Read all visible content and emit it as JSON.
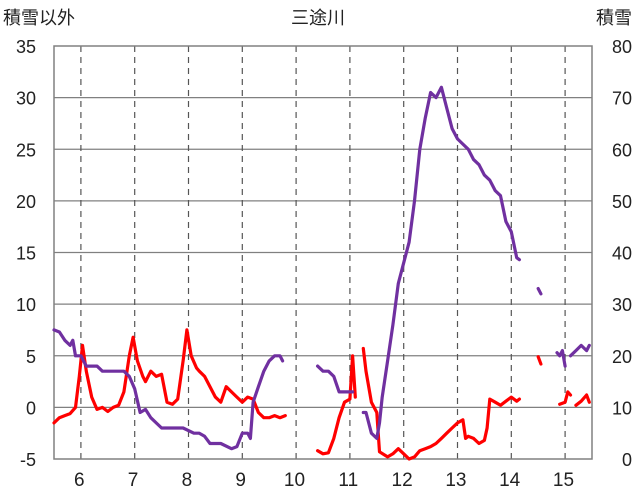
{
  "chart_data": {
    "type": "line",
    "title": "三途川",
    "ylabel_left": "積雪以外",
    "ylabel_right": "積雪",
    "ylim_left": [
      -5,
      35
    ],
    "ylim_right": [
      0,
      80
    ],
    "yticks_left": [
      "35",
      "30",
      "25",
      "20",
      "15",
      "10",
      "5",
      "0",
      "-5"
    ],
    "yticks_right": [
      "80",
      "70",
      "60",
      "50",
      "40",
      "30",
      "20",
      "10",
      "0"
    ],
    "x_categories": [
      "6",
      "7",
      "8",
      "9",
      "10",
      "11",
      "12",
      "13",
      "14",
      "15"
    ],
    "xlim": [
      5.5,
      15.5
    ],
    "gridlines": "dashed vertical at day boundaries; solid horizontal at 5-unit steps",
    "series": [
      {
        "axis": "left",
        "color": "#ff0000",
        "segments": [
          [
            [
              5.5,
              -1.5
            ],
            [
              5.6,
              -1.0
            ],
            [
              5.7,
              -0.8
            ],
            [
              5.8,
              -0.6
            ],
            [
              5.9,
              0.0
            ],
            [
              5.97,
              3.0
            ],
            [
              6.03,
              6.0
            ],
            [
              6.1,
              3.5
            ],
            [
              6.2,
              1.0
            ],
            [
              6.3,
              -0.2
            ],
            [
              6.4,
              0.0
            ],
            [
              6.5,
              -0.4
            ],
            [
              6.6,
              0.0
            ],
            [
              6.7,
              0.2
            ],
            [
              6.8,
              1.5
            ],
            [
              6.9,
              5.0
            ],
            [
              6.97,
              6.8
            ],
            [
              7.05,
              4.5
            ],
            [
              7.15,
              3.0
            ],
            [
              7.2,
              2.5
            ],
            [
              7.3,
              3.5
            ],
            [
              7.4,
              3.0
            ],
            [
              7.5,
              3.2
            ],
            [
              7.6,
              0.5
            ],
            [
              7.7,
              0.3
            ],
            [
              7.8,
              0.8
            ],
            [
              7.9,
              4.5
            ],
            [
              7.97,
              7.5
            ],
            [
              8.05,
              5.0
            ],
            [
              8.15,
              3.8
            ],
            [
              8.2,
              3.5
            ],
            [
              8.3,
              3.0
            ],
            [
              8.4,
              2.0
            ],
            [
              8.5,
              1.0
            ],
            [
              8.6,
              0.5
            ],
            [
              8.7,
              2.0
            ],
            [
              8.8,
              1.5
            ],
            [
              8.9,
              1.0
            ],
            [
              9.0,
              0.5
            ],
            [
              9.1,
              1.0
            ],
            [
              9.2,
              0.8
            ],
            [
              9.3,
              -0.5
            ],
            [
              9.4,
              -1.0
            ],
            [
              9.5,
              -1.0
            ],
            [
              9.6,
              -0.8
            ],
            [
              9.7,
              -1.0
            ],
            [
              9.8,
              -0.8
            ]
          ],
          [
            [
              10.4,
              -4.2
            ],
            [
              10.5,
              -4.5
            ],
            [
              10.6,
              -4.4
            ],
            [
              10.7,
              -3.0
            ],
            [
              10.8,
              -1.0
            ],
            [
              10.9,
              0.5
            ],
            [
              11.0,
              0.8
            ],
            [
              11.05,
              5.0
            ],
            [
              11.1,
              1.0
            ]
          ],
          [
            [
              11.25,
              5.7
            ],
            [
              11.3,
              3.5
            ],
            [
              11.4,
              0.5
            ],
            [
              11.5,
              -0.5
            ],
            [
              11.55,
              -4.3
            ],
            [
              11.7,
              -4.8
            ],
            [
              11.8,
              -4.5
            ],
            [
              11.9,
              -4.0
            ],
            [
              12.0,
              -4.5
            ],
            [
              12.1,
              -5.0
            ],
            [
              12.2,
              -4.8
            ],
            [
              12.3,
              -4.2
            ],
            [
              12.4,
              -4.0
            ],
            [
              12.5,
              -3.8
            ],
            [
              12.6,
              -3.5
            ],
            [
              12.7,
              -3.0
            ],
            [
              12.8,
              -2.5
            ],
            [
              12.9,
              -2.0
            ],
            [
              13.0,
              -1.5
            ],
            [
              13.1,
              -1.2
            ],
            [
              13.15,
              -3.0
            ],
            [
              13.2,
              -2.8
            ],
            [
              13.3,
              -3.0
            ],
            [
              13.4,
              -3.5
            ],
            [
              13.5,
              -3.2
            ],
            [
              13.55,
              -2.0
            ],
            [
              13.6,
              0.8
            ],
            [
              13.7,
              0.5
            ],
            [
              13.8,
              0.2
            ],
            [
              13.9,
              0.6
            ],
            [
              14.0,
              1.0
            ],
            [
              14.1,
              0.6
            ],
            [
              14.15,
              0.8
            ]
          ],
          [
            [
              14.5,
              4.9
            ],
            [
              14.55,
              4.2
            ]
          ],
          [
            [
              14.9,
              0.3
            ],
            [
              15.0,
              0.5
            ],
            [
              15.05,
              1.5
            ],
            [
              15.1,
              1.2
            ]
          ],
          [
            [
              15.2,
              0.2
            ],
            [
              15.3,
              0.6
            ],
            [
              15.4,
              1.2
            ],
            [
              15.45,
              0.5
            ]
          ]
        ]
      },
      {
        "axis": "left",
        "color": "#7030a0",
        "segments": [
          [
            [
              5.5,
              7.5
            ],
            [
              5.6,
              7.3
            ],
            [
              5.7,
              6.5
            ],
            [
              5.8,
              6.0
            ],
            [
              5.85,
              6.5
            ],
            [
              5.9,
              5.0
            ],
            [
              6.0,
              5.0
            ],
            [
              6.1,
              4.0
            ],
            [
              6.3,
              4.0
            ],
            [
              6.4,
              3.5
            ],
            [
              6.6,
              3.5
            ],
            [
              6.8,
              3.5
            ],
            [
              6.9,
              3.0
            ],
            [
              7.0,
              1.8
            ],
            [
              7.1,
              -0.5
            ],
            [
              7.2,
              -0.2
            ],
            [
              7.3,
              -1.0
            ],
            [
              7.4,
              -1.5
            ],
            [
              7.5,
              -2.0
            ],
            [
              7.7,
              -2.0
            ],
            [
              7.9,
              -2.0
            ],
            [
              8.1,
              -2.5
            ],
            [
              8.2,
              -2.5
            ],
            [
              8.3,
              -2.8
            ],
            [
              8.4,
              -3.5
            ],
            [
              8.6,
              -3.5
            ],
            [
              8.8,
              -4.0
            ],
            [
              8.9,
              -3.8
            ],
            [
              9.0,
              -2.5
            ],
            [
              9.1,
              -2.5
            ],
            [
              9.15,
              -3.0
            ],
            [
              9.2,
              0.5
            ],
            [
              9.3,
              2.0
            ],
            [
              9.4,
              3.5
            ],
            [
              9.5,
              4.5
            ],
            [
              9.6,
              5.0
            ],
            [
              9.7,
              5.0
            ],
            [
              9.75,
              4.5
            ]
          ],
          [
            [
              10.4,
              4.0
            ],
            [
              10.5,
              3.5
            ],
            [
              10.6,
              3.5
            ],
            [
              10.7,
              3.0
            ],
            [
              10.8,
              1.5
            ],
            [
              10.95,
              1.5
            ],
            [
              11.05,
              1.5
            ]
          ],
          [
            [
              11.25,
              -0.5
            ],
            [
              11.3,
              -0.5
            ],
            [
              11.4,
              -2.5
            ],
            [
              11.5,
              -3.0
            ],
            [
              11.55,
              -1.5
            ],
            [
              11.6,
              1.0
            ],
            [
              11.7,
              4.5
            ],
            [
              11.8,
              8.0
            ],
            [
              11.9,
              12.0
            ],
            [
              12.0,
              14.0
            ],
            [
              12.1,
              16.0
            ],
            [
              12.2,
              20.0
            ],
            [
              12.3,
              25.0
            ],
            [
              12.4,
              28.0
            ],
            [
              12.5,
              30.5
            ],
            [
              12.6,
              30.0
            ],
            [
              12.7,
              31.0
            ],
            [
              12.8,
              29.0
            ],
            [
              12.9,
              27.0
            ],
            [
              13.0,
              26.0
            ],
            [
              13.1,
              25.5
            ],
            [
              13.2,
              25.0
            ],
            [
              13.3,
              24.0
            ],
            [
              13.4,
              23.5
            ],
            [
              13.5,
              22.5
            ],
            [
              13.6,
              22.0
            ],
            [
              13.7,
              21.0
            ],
            [
              13.8,
              20.5
            ],
            [
              13.9,
              18.0
            ],
            [
              14.0,
              17.0
            ],
            [
              14.1,
              14.5
            ],
            [
              14.15,
              14.3
            ]
          ],
          [
            [
              14.5,
              11.5
            ],
            [
              14.55,
              11.0
            ]
          ],
          [
            [
              14.85,
              5.3
            ],
            [
              14.9,
              5.0
            ],
            [
              14.95,
              5.5
            ],
            [
              15.0,
              4.0
            ]
          ],
          [
            [
              15.1,
              5.0
            ],
            [
              15.2,
              5.5
            ],
            [
              15.3,
              6.0
            ],
            [
              15.4,
              5.5
            ],
            [
              15.45,
              6.0
            ]
          ]
        ]
      }
    ]
  }
}
